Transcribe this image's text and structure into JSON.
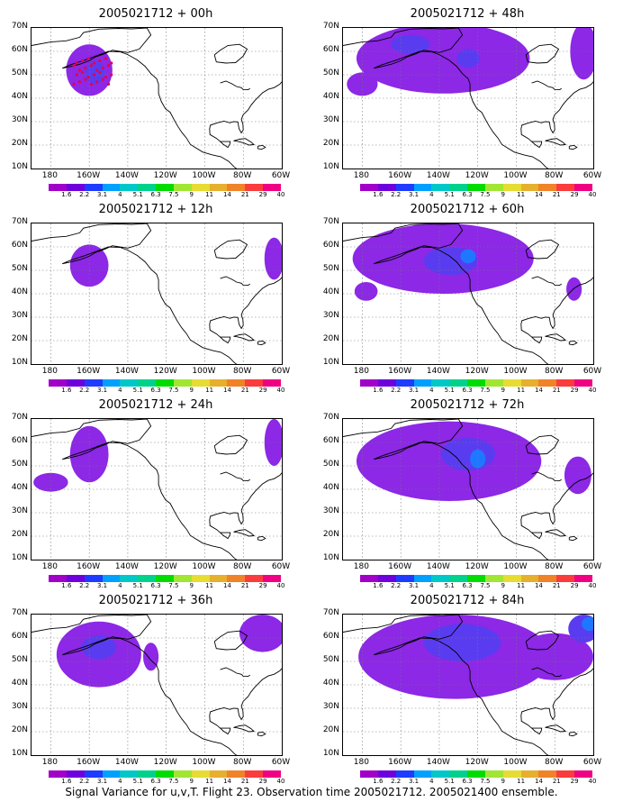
{
  "panels": [
    {
      "title": "2005021712 + 00h",
      "blobs": [
        {
          "lon": 200,
          "lat": 52,
          "rx": 12,
          "ry": 11,
          "level": 1
        },
        {
          "lon": 203,
          "lat": 51,
          "rx": 5,
          "ry": 5,
          "level": 2
        }
      ],
      "dots": true
    },
    {
      "title": "2005021712 + 48h",
      "blobs": [
        {
          "lon": 222,
          "lat": 57,
          "rx": 45,
          "ry": 15,
          "level": 1
        },
        {
          "lon": 180,
          "lat": 46,
          "rx": 8,
          "ry": 5,
          "level": 1
        },
        {
          "lon": 295,
          "lat": 60,
          "rx": 7,
          "ry": 12,
          "level": 1
        },
        {
          "lon": 205,
          "lat": 63,
          "rx": 10,
          "ry": 4,
          "level": 2
        },
        {
          "lon": 235,
          "lat": 57,
          "rx": 6,
          "ry": 4,
          "level": 2
        }
      ]
    },
    {
      "title": "2005021712 + 12h",
      "blobs": [
        {
          "lon": 200,
          "lat": 52,
          "rx": 10,
          "ry": 9,
          "level": 1
        },
        {
          "lon": 296,
          "lat": 55,
          "rx": 5,
          "ry": 9,
          "level": 1
        }
      ]
    },
    {
      "title": "2005021712 + 60h",
      "blobs": [
        {
          "lon": 222,
          "lat": 55,
          "rx": 47,
          "ry": 15,
          "level": 1
        },
        {
          "lon": 182,
          "lat": 41,
          "rx": 6,
          "ry": 4,
          "level": 1
        },
        {
          "lon": 290,
          "lat": 42,
          "rx": 4,
          "ry": 5,
          "level": 1
        },
        {
          "lon": 226,
          "lat": 54,
          "rx": 14,
          "ry": 6,
          "level": 2
        },
        {
          "lon": 235,
          "lat": 56,
          "rx": 4,
          "ry": 3,
          "level": 3
        }
      ]
    },
    {
      "title": "2005021712 + 24h",
      "blobs": [
        {
          "lon": 200,
          "lat": 55,
          "rx": 10,
          "ry": 12,
          "level": 1
        },
        {
          "lon": 180,
          "lat": 43,
          "rx": 9,
          "ry": 4,
          "level": 1
        },
        {
          "lon": 296,
          "lat": 60,
          "rx": 5,
          "ry": 10,
          "level": 1
        }
      ]
    },
    {
      "title": "2005021712 + 72h",
      "blobs": [
        {
          "lon": 225,
          "lat": 52,
          "rx": 48,
          "ry": 17,
          "level": 1
        },
        {
          "lon": 292,
          "lat": 46,
          "rx": 7,
          "ry": 8,
          "level": 1
        },
        {
          "lon": 235,
          "lat": 55,
          "rx": 14,
          "ry": 7,
          "level": 2
        },
        {
          "lon": 240,
          "lat": 53,
          "rx": 4,
          "ry": 4,
          "level": 3
        }
      ]
    },
    {
      "title": "2005021712 + 36h",
      "blobs": [
        {
          "lon": 205,
          "lat": 53,
          "rx": 22,
          "ry": 14,
          "level": 1
        },
        {
          "lon": 232,
          "lat": 52,
          "rx": 4,
          "ry": 6,
          "level": 1
        },
        {
          "lon": 290,
          "lat": 62,
          "rx": 12,
          "ry": 8,
          "level": 1
        },
        {
          "lon": 205,
          "lat": 56,
          "rx": 9,
          "ry": 5,
          "level": 2
        }
      ]
    },
    {
      "title": "2005021712 + 84h",
      "blobs": [
        {
          "lon": 228,
          "lat": 52,
          "rx": 50,
          "ry": 18,
          "level": 1
        },
        {
          "lon": 280,
          "lat": 52,
          "rx": 20,
          "ry": 10,
          "level": 1
        },
        {
          "lon": 232,
          "lat": 58,
          "rx": 20,
          "ry": 8,
          "level": 2
        },
        {
          "lon": 295,
          "lat": 64,
          "rx": 8,
          "ry": 6,
          "level": 2
        },
        {
          "lon": 298,
          "lat": 66,
          "rx": 4,
          "ry": 3,
          "level": 3
        }
      ]
    }
  ],
  "map_axes": {
    "lat_ticks": [
      "70N",
      "60N",
      "50N",
      "40N",
      "30N",
      "20N",
      "10N"
    ],
    "lon_ticks": [
      "180",
      "160W",
      "140W",
      "120W",
      "100W",
      "80W",
      "60W"
    ],
    "lon_range": [
      170,
      300
    ],
    "lat_range": [
      10,
      70
    ]
  },
  "colorbar": {
    "labels": [
      "1.6",
      "2.2",
      "3.1",
      "4",
      "5.1",
      "6.3",
      "7.5",
      "9",
      "11",
      "14",
      "21",
      "29",
      "40"
    ],
    "colors": [
      "#a000c8",
      "#6e00dc",
      "#1e3cff",
      "#00a0ff",
      "#00c8c8",
      "#00d28c",
      "#00dc00",
      "#a0e632",
      "#e6dc32",
      "#e6af2d",
      "#f08228",
      "#fa3c3c",
      "#f00082"
    ]
  },
  "fill_colors": {
    "level1": "#8c28e6",
    "level2": "#5a3cf0",
    "level3": "#1e78ff"
  },
  "footer": "Signal Variance for u,v,T. Flight 23. Observation time 2005021712. 2005021400 ensemble."
}
